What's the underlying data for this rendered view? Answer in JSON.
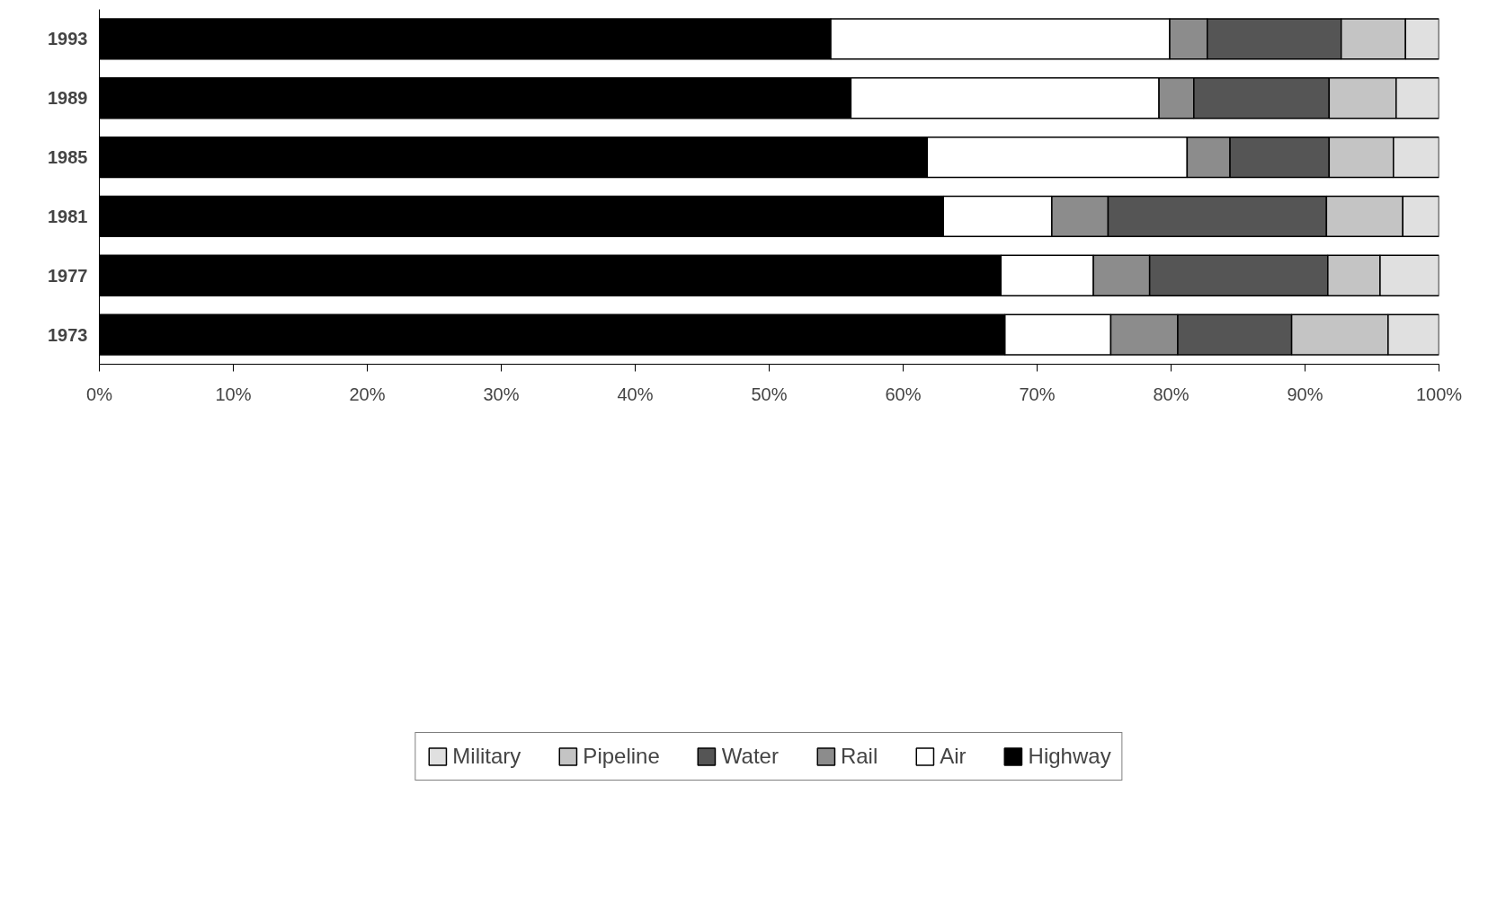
{
  "chart_data": {
    "type": "bar",
    "orientation": "horizontal",
    "stacked": true,
    "categories": [
      "1993",
      "1989",
      "1985",
      "1981",
      "1977",
      "1973"
    ],
    "series": [
      {
        "name": "Highway",
        "color": "#000000",
        "values": [
          54.6,
          56.1,
          61.8,
          63.0,
          67.3,
          67.6
        ]
      },
      {
        "name": "Air",
        "color": "#ffffff",
        "values": [
          25.3,
          23.0,
          19.4,
          8.1,
          6.9,
          7.9
        ]
      },
      {
        "name": "Rail",
        "color": "#8c8c8c",
        "values": [
          2.8,
          2.6,
          3.2,
          4.2,
          4.2,
          5.0
        ]
      },
      {
        "name": "Water",
        "color": "#555555",
        "values": [
          10.0,
          10.1,
          7.4,
          16.3,
          13.3,
          8.5
        ]
      },
      {
        "name": "Pipeline",
        "color": "#c4c4c4",
        "values": [
          4.8,
          5.0,
          4.8,
          5.7,
          3.9,
          7.2
        ]
      },
      {
        "name": "Military",
        "color": "#e0e0e0",
        "values": [
          2.5,
          3.2,
          3.4,
          2.7,
          4.4,
          3.8
        ]
      }
    ],
    "xlim": [
      0,
      100
    ],
    "xticks": [
      {
        "value": 0,
        "label": "0%"
      },
      {
        "value": 10,
        "label": "10%"
      },
      {
        "value": 20,
        "label": "20%"
      },
      {
        "value": 30,
        "label": "30%"
      },
      {
        "value": 40,
        "label": "40%"
      },
      {
        "value": 50,
        "label": "50%"
      },
      {
        "value": 60,
        "label": "60%"
      },
      {
        "value": 70,
        "label": "70%"
      },
      {
        "value": 80,
        "label": "80%"
      },
      {
        "value": 90,
        "label": "90%"
      },
      {
        "value": 100,
        "label": "100%"
      }
    ],
    "grid": false,
    "legend": "bottom"
  }
}
